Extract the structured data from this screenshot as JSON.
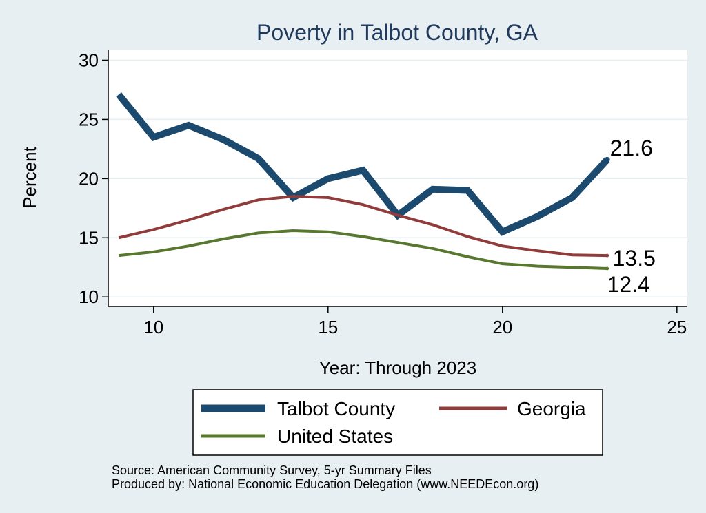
{
  "chart_data": {
    "type": "line",
    "title": "Poverty in Talbot County, GA",
    "xlabel": "Year: Through 2023",
    "ylabel": "Percent",
    "xlim": [
      8.7,
      25.3
    ],
    "ylim": [
      9.2,
      30.9
    ],
    "xticks": [
      10,
      15,
      20,
      25
    ],
    "yticks": [
      10,
      15,
      20,
      25,
      30
    ],
    "grid": "horizontal",
    "legend_position": "bottom",
    "series": [
      {
        "name": "Talbot County",
        "color": "#1b4a6e",
        "x": [
          9,
          10,
          11,
          12,
          13,
          14,
          15,
          16,
          17,
          18,
          19,
          20,
          21,
          22,
          23
        ],
        "values": [
          27.1,
          23.5,
          24.5,
          23.3,
          21.7,
          18.4,
          20.0,
          20.7,
          16.9,
          19.1,
          19.0,
          15.5,
          16.8,
          18.4,
          21.6
        ],
        "end_label": "21.6"
      },
      {
        "name": "Georgia",
        "color": "#913b3b",
        "x": [
          9,
          10,
          11,
          12,
          13,
          14,
          15,
          16,
          17,
          18,
          19,
          20,
          21,
          22,
          23
        ],
        "values": [
          15.0,
          15.7,
          16.5,
          17.4,
          18.2,
          18.5,
          18.4,
          17.8,
          16.9,
          16.1,
          15.1,
          14.3,
          13.9,
          13.55,
          13.5
        ],
        "end_label": "13.5"
      },
      {
        "name": "United States",
        "color": "#58772f",
        "x": [
          9,
          10,
          11,
          12,
          13,
          14,
          15,
          16,
          17,
          18,
          19,
          20,
          21,
          22,
          23
        ],
        "values": [
          13.5,
          13.8,
          14.3,
          14.9,
          15.4,
          15.6,
          15.5,
          15.1,
          14.6,
          14.1,
          13.4,
          12.8,
          12.6,
          12.5,
          12.4
        ],
        "end_label": "12.4"
      }
    ],
    "source_note": "Source: American Community Survey, 5-yr Summary Files",
    "produced_note": "Produced by: National Economic Education Delegation (www.NEEDEcon.org)"
  }
}
